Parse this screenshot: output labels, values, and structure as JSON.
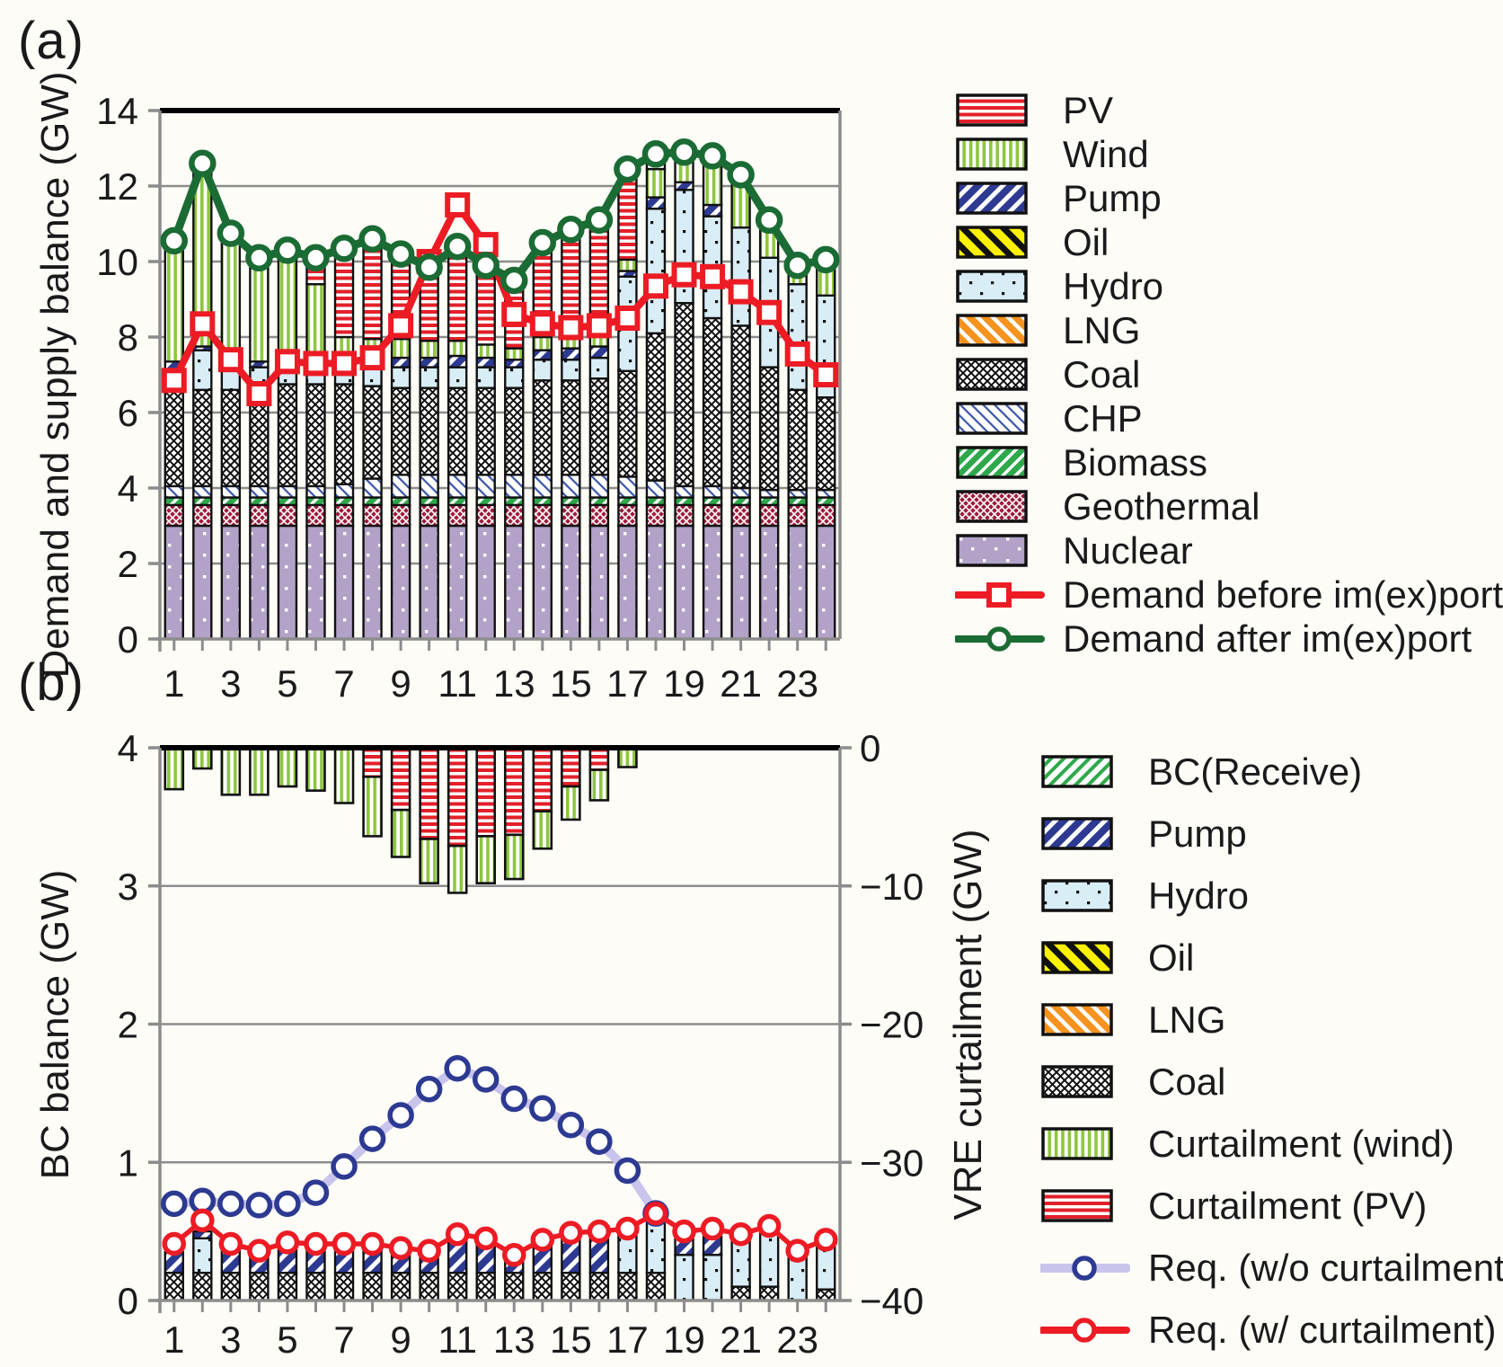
{
  "figure": {
    "panel_a_label": "(a)",
    "panel_b_label": "(b)",
    "background": "#FDFCF7"
  },
  "colors": {
    "demand_before_line": "#EC1B24",
    "demand_after_line": "#1B6B34",
    "req_without_line": "#C9C4EC",
    "req_without_marker": "#2D3A92",
    "req_with_line": "#EC1B24",
    "grid": "#8C8C8C",
    "bar_outline": "#111111",
    "pv_red": "#E3202A",
    "wind_green": "#8DC63F",
    "pump_navy": "#2D3A92",
    "oil_yellow": "#FFF200",
    "hydro_blue": "#D9EDF7",
    "lng_orange": "#F6921E",
    "chp_blue": "#3B55A5",
    "biomass_green": "#2EA84A",
    "geothermal_red": "#9D1D3C",
    "nuclear_purple": "#B2A2C8"
  },
  "legends": {
    "a": [
      {
        "key": "pv",
        "type": "patch",
        "label": "PV"
      },
      {
        "key": "wind",
        "type": "patch",
        "label": "Wind"
      },
      {
        "key": "pump",
        "type": "patch",
        "label": "Pump"
      },
      {
        "key": "oil",
        "type": "patch",
        "label": "Oil"
      },
      {
        "key": "hydro",
        "type": "patch",
        "label": "Hydro"
      },
      {
        "key": "lng",
        "type": "patch",
        "label": "LNG"
      },
      {
        "key": "coal",
        "type": "patch",
        "label": "Coal"
      },
      {
        "key": "chp",
        "type": "patch",
        "label": "CHP"
      },
      {
        "key": "biomass",
        "type": "patch",
        "label": "Biomass"
      },
      {
        "key": "geothermal",
        "type": "patch",
        "label": "Geothermal"
      },
      {
        "key": "nuclear",
        "type": "patch",
        "label": "Nuclear"
      },
      {
        "key": "demand_before",
        "type": "line-square",
        "label": "Demand before im(ex)port",
        "color": "#EC1B24",
        "marker_color": "#EC1B24"
      },
      {
        "key": "demand_after",
        "type": "line-circle",
        "label": "Demand after im(ex)port",
        "color": "#1B6B34",
        "marker_color": "#1B6B34"
      }
    ],
    "b": [
      {
        "key": "bc_receive",
        "type": "patch",
        "label": "BC(Receive)"
      },
      {
        "key": "pump",
        "type": "patch",
        "label": "Pump"
      },
      {
        "key": "hydro",
        "type": "patch",
        "label": "Hydro"
      },
      {
        "key": "oil",
        "type": "patch",
        "label": "Oil"
      },
      {
        "key": "lng",
        "type": "patch",
        "label": "LNG"
      },
      {
        "key": "coal",
        "type": "patch",
        "label": "Coal"
      },
      {
        "key": "curtail_wind",
        "type": "patch",
        "label": "Curtailment (wind)"
      },
      {
        "key": "curtail_pv",
        "type": "patch",
        "label": "Curtailment (PV)"
      },
      {
        "key": "req_wo",
        "type": "line-circle",
        "label": "Req. (w/o curtailment)",
        "color": "#C9C4EC",
        "marker_color": "#2D3A92"
      },
      {
        "key": "req_w",
        "type": "line-circle",
        "label": "Req. (w/ curtailment)",
        "color": "#EC1B24",
        "marker_color": "#EC1B24"
      }
    ]
  },
  "chart_data": [
    {
      "id": "demand_supply_balance",
      "type": "bar",
      "subtype": "stacked-bar-with-lines",
      "ylabel": "Demand and supply balance (GW)",
      "ylim": [
        0,
        14
      ],
      "y_ticks": [
        0,
        2,
        4,
        6,
        8,
        10,
        12,
        14
      ],
      "x": [
        1,
        2,
        3,
        4,
        5,
        6,
        7,
        8,
        9,
        10,
        11,
        12,
        13,
        14,
        15,
        16,
        17,
        18,
        19,
        20,
        21,
        22,
        23,
        24
      ],
      "x_label_hours": [
        1,
        3,
        5,
        7,
        9,
        11,
        13,
        15,
        17,
        19,
        21,
        23
      ],
      "x_tick_labels": [
        "1",
        "3",
        "5",
        "7",
        "9",
        "11",
        "13",
        "15",
        "17",
        "19",
        "21",
        "23"
      ],
      "grid": true,
      "stack_order": [
        "nuclear",
        "geothermal",
        "biomass",
        "chp",
        "coal",
        "hydro",
        "pump",
        "wind",
        "pv"
      ],
      "series": {
        "nuclear": [
          3.0,
          3.0,
          3.0,
          3.0,
          3.0,
          3.0,
          3.0,
          3.0,
          3.0,
          3.0,
          3.0,
          3.0,
          3.0,
          3.0,
          3.0,
          3.0,
          3.0,
          3.0,
          3.0,
          3.0,
          3.0,
          3.0,
          3.0,
          3.0
        ],
        "geothermal": [
          0.55,
          0.55,
          0.55,
          0.55,
          0.55,
          0.55,
          0.55,
          0.55,
          0.55,
          0.55,
          0.55,
          0.55,
          0.55,
          0.55,
          0.55,
          0.55,
          0.55,
          0.55,
          0.55,
          0.55,
          0.55,
          0.55,
          0.55,
          0.55
        ],
        "biomass": [
          0.2,
          0.2,
          0.2,
          0.2,
          0.2,
          0.2,
          0.2,
          0.2,
          0.2,
          0.2,
          0.2,
          0.2,
          0.2,
          0.2,
          0.2,
          0.2,
          0.2,
          0.2,
          0.2,
          0.2,
          0.2,
          0.2,
          0.2,
          0.2
        ],
        "chp": [
          0.3,
          0.3,
          0.3,
          0.3,
          0.3,
          0.3,
          0.35,
          0.5,
          0.6,
          0.6,
          0.6,
          0.6,
          0.6,
          0.6,
          0.6,
          0.6,
          0.55,
          0.45,
          0.3,
          0.3,
          0.25,
          0.2,
          0.2,
          0.2
        ],
        "coal": [
          2.55,
          2.55,
          2.55,
          2.55,
          2.7,
          2.7,
          2.65,
          2.45,
          2.3,
          2.3,
          2.3,
          2.3,
          2.3,
          2.5,
          2.5,
          2.55,
          2.8,
          3.9,
          4.85,
          4.45,
          4.3,
          3.25,
          2.65,
          2.45
        ],
        "hydro": [
          0.55,
          1.05,
          0.7,
          0.6,
          0.6,
          0.6,
          0.55,
          0.55,
          0.55,
          0.55,
          0.55,
          0.55,
          0.55,
          0.55,
          0.55,
          0.55,
          2.5,
          3.3,
          3.0,
          2.7,
          2.6,
          2.9,
          2.8,
          2.7
        ],
        "pump": [
          0.2,
          0.1,
          0.15,
          0.15,
          0.1,
          0.1,
          0.15,
          0.2,
          0.25,
          0.25,
          0.3,
          0.25,
          0.2,
          0.25,
          0.3,
          0.3,
          0.15,
          0.3,
          0.2,
          0.3,
          0,
          0,
          0,
          0
        ],
        "wind": [
          3.2,
          4.85,
          3.3,
          2.95,
          3.0,
          1.95,
          0.55,
          0.5,
          0.5,
          0.45,
          0.4,
          0.35,
          0.3,
          0.35,
          0.35,
          0.35,
          0.3,
          0.75,
          0.8,
          1.35,
          1.5,
          1.1,
          0.6,
          0.95
        ],
        "pv": [
          0,
          0,
          0,
          0,
          0,
          0.7,
          2.3,
          2.65,
          2.25,
          1.95,
          2.5,
          2.1,
          1.8,
          2.5,
          2.85,
          3.0,
          2.4,
          0.35,
          0,
          0,
          0,
          0,
          0,
          0
        ],
        "oil": [
          0,
          0,
          0,
          0,
          0,
          0,
          0,
          0,
          0,
          0,
          0,
          0,
          0,
          0,
          0,
          0,
          0,
          0,
          0,
          0,
          0,
          0,
          0,
          0
        ],
        "lng": [
          0,
          0,
          0,
          0,
          0,
          0,
          0,
          0,
          0,
          0,
          0,
          0,
          0,
          0,
          0,
          0,
          0,
          0,
          0,
          0,
          0,
          0,
          0,
          0
        ]
      },
      "lines": {
        "demand_before_imexport": [
          6.85,
          8.35,
          7.4,
          6.5,
          7.35,
          7.3,
          7.3,
          7.45,
          8.3,
          10.0,
          11.5,
          10.45,
          8.6,
          8.35,
          8.25,
          8.3,
          8.5,
          9.35,
          9.65,
          9.6,
          9.2,
          8.65,
          7.55,
          7.0
        ],
        "demand_after_imexport": [
          10.55,
          12.6,
          10.75,
          10.1,
          10.3,
          10.1,
          10.35,
          10.6,
          10.2,
          9.85,
          10.4,
          9.9,
          9.5,
          10.5,
          10.85,
          11.1,
          12.45,
          12.85,
          12.9,
          12.8,
          12.3,
          11.1,
          9.9,
          10.05
        ]
      }
    },
    {
      "id": "bc_balance_vre_curtailment",
      "type": "bar",
      "subtype": "stacked-bar-dual-axis-with-lines",
      "ylabel": "BC balance (GW)",
      "ylim": [
        0,
        4
      ],
      "y_ticks": [
        0,
        1,
        2,
        3,
        4
      ],
      "y2label": "VRE curtailment (GW)",
      "y2lim": [
        0,
        -40
      ],
      "y2_ticks": [
        0,
        -10,
        -20,
        -30,
        -40
      ],
      "y2_tick_labels": [
        "0",
        "−10",
        "−20",
        "−30",
        "−40"
      ],
      "x": [
        1,
        2,
        3,
        4,
        5,
        6,
        7,
        8,
        9,
        10,
        11,
        12,
        13,
        14,
        15,
        16,
        17,
        18,
        19,
        20,
        21,
        22,
        23,
        24
      ],
      "x_label_hours": [
        1,
        3,
        5,
        7,
        9,
        11,
        13,
        15,
        17,
        19,
        21,
        23
      ],
      "x_tick_labels": [
        "1",
        "3",
        "5",
        "7",
        "9",
        "11",
        "13",
        "15",
        "17",
        "19",
        "21",
        "23"
      ],
      "grid": true,
      "bottom_stack_order": [
        "coal",
        "hydro",
        "pump"
      ],
      "bottom_series": {
        "coal": [
          0.2,
          0.2,
          0.2,
          0.2,
          0.2,
          0.2,
          0.2,
          0.2,
          0.2,
          0.2,
          0.2,
          0.2,
          0.2,
          0.2,
          0.2,
          0.2,
          0.2,
          0.2,
          0,
          0,
          0.1,
          0.1,
          0,
          0.08
        ],
        "hydro": [
          0,
          0.25,
          0,
          0,
          0,
          0,
          0,
          0,
          0,
          0,
          0,
          0,
          0,
          0,
          0,
          0,
          0.31,
          0.42,
          0.33,
          0.33,
          0.38,
          0.44,
          0.33,
          0.36
        ],
        "pump": [
          0.15,
          0.05,
          0.17,
          0.15,
          0.2,
          0.2,
          0.22,
          0.22,
          0.17,
          0.15,
          0.27,
          0.24,
          0.12,
          0.23,
          0.29,
          0.29,
          0,
          0,
          0.12,
          0.13,
          0,
          0,
          0,
          0
        ],
        "oil": [
          0,
          0,
          0,
          0,
          0,
          0,
          0,
          0,
          0,
          0,
          0,
          0,
          0,
          0,
          0,
          0,
          0,
          0,
          0,
          0,
          0,
          0,
          0,
          0
        ],
        "lng": [
          0,
          0,
          0,
          0,
          0,
          0,
          0,
          0,
          0,
          0,
          0,
          0,
          0,
          0,
          0,
          0,
          0,
          0,
          0,
          0,
          0,
          0,
          0,
          0
        ],
        "bc_receive": [
          0,
          0,
          0,
          0,
          0,
          0,
          0,
          0,
          0,
          0,
          0,
          0,
          0,
          0,
          0,
          0,
          0,
          0,
          0,
          0,
          0,
          0,
          0,
          0
        ]
      },
      "curtailment_order": [
        "curtail_pv",
        "curtail_wind"
      ],
      "curtailment_series": {
        "curtail_pv": [
          0,
          0,
          0,
          0,
          0,
          0,
          0,
          -2.1,
          -4.5,
          -6.6,
          -7.1,
          -6.4,
          -6.3,
          -4.6,
          -2.8,
          -1.6,
          0,
          0,
          0,
          0,
          0,
          0,
          0,
          0
        ],
        "curtail_wind": [
          -3.0,
          -1.5,
          -3.4,
          -3.4,
          -2.8,
          -3.1,
          -4.0,
          -4.3,
          -3.4,
          -3.2,
          -3.4,
          -3.4,
          -3.2,
          -2.7,
          -2.4,
          -2.2,
          -1.4,
          0,
          0,
          0,
          0,
          0,
          0,
          0
        ]
      },
      "lines": {
        "req_without_curtailment": [
          0.7,
          0.72,
          0.7,
          0.69,
          0.7,
          0.78,
          0.97,
          1.17,
          1.34,
          1.53,
          1.68,
          1.6,
          1.46,
          1.39,
          1.27,
          1.15,
          0.94,
          0.63,
          null,
          null,
          null,
          null,
          null,
          null
        ],
        "req_with_curtailment": [
          0.41,
          0.58,
          0.41,
          0.36,
          0.42,
          0.41,
          0.41,
          0.41,
          0.38,
          0.36,
          0.48,
          0.45,
          0.33,
          0.44,
          0.49,
          0.5,
          0.52,
          0.63,
          0.5,
          0.52,
          0.48,
          0.54,
          0.36,
          0.44
        ]
      }
    }
  ]
}
